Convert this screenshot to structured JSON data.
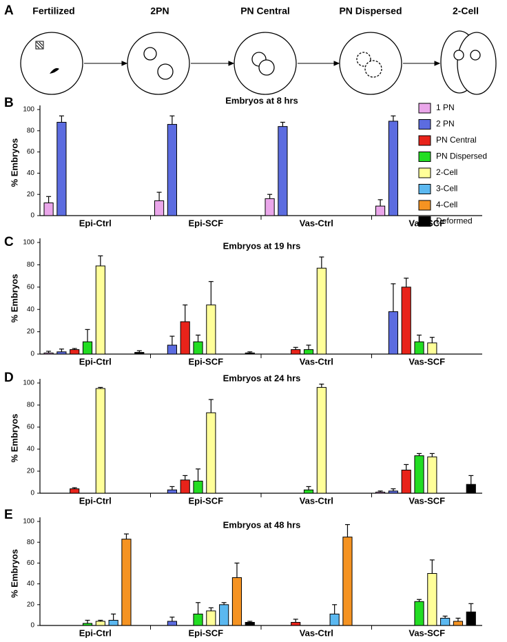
{
  "diagram": {
    "panel": "A",
    "stages": [
      "Fertilized",
      "2PN",
      "PN Central",
      "PN Dispersed",
      "2-Cell"
    ]
  },
  "chart_data": [
    {
      "type": "bar",
      "panel": "B",
      "title": "Embryos at 8 hrs",
      "ylabel": "% Embryos",
      "legend": true,
      "categories": [
        "Epi-Ctrl",
        "Epi-SCF",
        "Vas-Ctrl",
        "Vas-SCF"
      ],
      "ylim": [
        0,
        100
      ],
      "yticks": [
        0,
        20,
        40,
        60,
        80,
        100
      ],
      "series": [
        {
          "name": "1 PN",
          "color": "#eaa6ea",
          "values": [
            12,
            14,
            16,
            9
          ],
          "errors": [
            6,
            8,
            4,
            6
          ]
        },
        {
          "name": "2 PN",
          "color": "#5c6ce0",
          "values": [
            88,
            86,
            84,
            89
          ],
          "errors": [
            6,
            8,
            4,
            5
          ]
        },
        {
          "name": "PN Central",
          "color": "#e8231a",
          "values": [
            null,
            null,
            null,
            null
          ],
          "errors": [
            null,
            null,
            null,
            null
          ]
        },
        {
          "name": "PN Dispersed",
          "color": "#22dd22",
          "values": [
            null,
            null,
            null,
            null
          ],
          "errors": [
            null,
            null,
            null,
            null
          ]
        },
        {
          "name": "2-Cell",
          "color": "#ffff99",
          "values": [
            null,
            null,
            null,
            null
          ],
          "errors": [
            null,
            null,
            null,
            null
          ]
        },
        {
          "name": "3-Cell",
          "color": "#5bb8f0",
          "values": [
            null,
            null,
            null,
            null
          ],
          "errors": [
            null,
            null,
            null,
            null
          ]
        },
        {
          "name": "4-Cell",
          "color": "#f59322",
          "values": [
            null,
            null,
            null,
            null
          ],
          "errors": [
            null,
            null,
            null,
            null
          ]
        },
        {
          "name": "Deformed",
          "color": "#000000",
          "values": [
            null,
            null,
            null,
            null
          ],
          "errors": [
            null,
            null,
            null,
            null
          ]
        }
      ]
    },
    {
      "type": "bar",
      "panel": "C",
      "title": "Embryos at 19 hrs",
      "ylabel": "% Embryos",
      "categories": [
        "Epi-Ctrl",
        "Epi-SCF",
        "Vas-Ctrl",
        "Vas-SCF"
      ],
      "ylim": [
        0,
        100
      ],
      "yticks": [
        0,
        20,
        40,
        60,
        80,
        100
      ],
      "series": [
        {
          "color": "#eaa6ea",
          "values": [
            1,
            null,
            null,
            null
          ],
          "errors": [
            1.5,
            null,
            null,
            null
          ]
        },
        {
          "color": "#5c6ce0",
          "values": [
            2,
            8,
            null,
            38
          ],
          "errors": [
            2.5,
            8,
            null,
            25
          ]
        },
        {
          "color": "#e8231a",
          "values": [
            4,
            29,
            4,
            60
          ],
          "errors": [
            1,
            15,
            2,
            8
          ]
        },
        {
          "color": "#22dd22",
          "values": [
            11,
            11,
            4,
            11
          ],
          "errors": [
            11,
            6,
            4,
            6
          ]
        },
        {
          "color": "#ffff99",
          "values": [
            79,
            44,
            77,
            10
          ],
          "errors": [
            9,
            21,
            10,
            5
          ]
        },
        {
          "color": "#5bb8f0",
          "values": [
            null,
            null,
            null,
            null
          ],
          "errors": [
            null,
            null,
            null,
            null
          ]
        },
        {
          "color": "#f59322",
          "values": [
            null,
            null,
            null,
            null
          ],
          "errors": [
            null,
            null,
            null,
            null
          ]
        },
        {
          "color": "#000000",
          "values": [
            1.5,
            1,
            null,
            null
          ],
          "errors": [
            1.5,
            1,
            null,
            null
          ]
        }
      ]
    },
    {
      "type": "bar",
      "panel": "D",
      "title": "Embryos at 24 hrs",
      "ylabel": "% Embryos",
      "categories": [
        "Epi-Ctrl",
        "Epi-SCF",
        "Vas-Ctrl",
        "Vas-SCF"
      ],
      "ylim": [
        0,
        100
      ],
      "yticks": [
        0,
        20,
        40,
        60,
        80,
        100
      ],
      "series": [
        {
          "color": "#eaa6ea",
          "values": [
            null,
            null,
            null,
            1
          ],
          "errors": [
            null,
            null,
            null,
            1
          ]
        },
        {
          "color": "#5c6ce0",
          "values": [
            null,
            3,
            null,
            2
          ],
          "errors": [
            null,
            3,
            null,
            2
          ]
        },
        {
          "color": "#e8231a",
          "values": [
            4,
            12,
            null,
            21
          ],
          "errors": [
            1,
            4,
            null,
            5
          ]
        },
        {
          "color": "#22dd22",
          "values": [
            null,
            11,
            3,
            34
          ],
          "errors": [
            null,
            11,
            3,
            2
          ]
        },
        {
          "color": "#ffff99",
          "values": [
            95,
            73,
            96,
            33
          ],
          "errors": [
            1,
            12,
            3,
            3
          ]
        },
        {
          "color": "#5bb8f0",
          "values": [
            null,
            null,
            null,
            null
          ],
          "errors": [
            null,
            null,
            null,
            null
          ]
        },
        {
          "color": "#f59322",
          "values": [
            null,
            null,
            null,
            null
          ],
          "errors": [
            null,
            null,
            null,
            null
          ]
        },
        {
          "color": "#000000",
          "values": [
            null,
            null,
            null,
            8
          ],
          "errors": [
            null,
            null,
            null,
            8
          ]
        }
      ]
    },
    {
      "type": "bar",
      "panel": "E",
      "title": "Embryos at 48 hrs",
      "ylabel": "% Embryos",
      "categories": [
        "Epi-Ctrl",
        "Epi-SCF",
        "Vas-Ctrl",
        "Vas-SCF"
      ],
      "ylim": [
        0,
        100
      ],
      "yticks": [
        0,
        20,
        40,
        60,
        80,
        100
      ],
      "series": [
        {
          "color": "#eaa6ea",
          "values": [
            null,
            null,
            null,
            null
          ],
          "errors": [
            null,
            null,
            null,
            null
          ]
        },
        {
          "color": "#5c6ce0",
          "values": [
            null,
            4,
            null,
            null
          ],
          "errors": [
            null,
            4,
            null,
            null
          ]
        },
        {
          "color": "#e8231a",
          "values": [
            null,
            null,
            3,
            null
          ],
          "errors": [
            null,
            null,
            3,
            null
          ]
        },
        {
          "color": "#22dd22",
          "values": [
            2,
            11,
            null,
            23
          ],
          "errors": [
            3,
            11,
            null,
            2
          ]
        },
        {
          "color": "#ffff99",
          "values": [
            4,
            14,
            null,
            50
          ],
          "errors": [
            1,
            3,
            null,
            13
          ]
        },
        {
          "color": "#5bb8f0",
          "values": [
            5,
            20,
            11,
            7
          ],
          "errors": [
            6,
            2,
            9,
            2
          ]
        },
        {
          "color": "#f59322",
          "values": [
            83,
            46,
            85,
            4
          ],
          "errors": [
            5,
            14,
            12,
            3
          ]
        },
        {
          "color": "#000000",
          "values": [
            null,
            3,
            null,
            13
          ],
          "errors": [
            null,
            1,
            null,
            8
          ]
        }
      ]
    }
  ]
}
